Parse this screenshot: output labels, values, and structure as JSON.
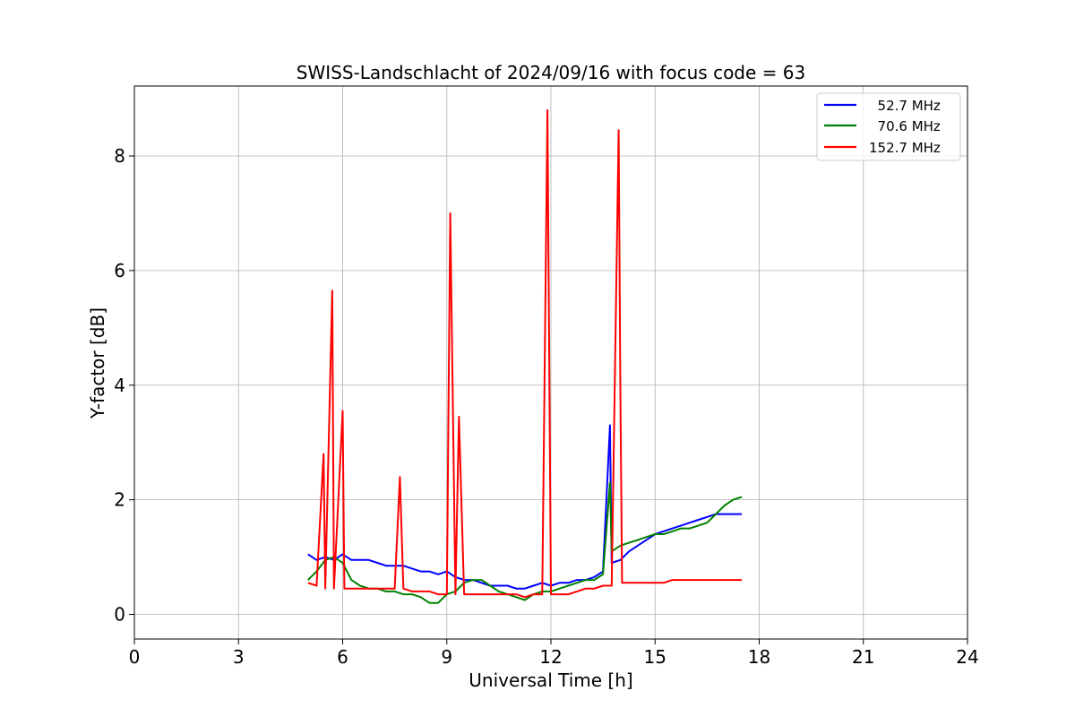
{
  "chart_data": {
    "type": "line",
    "title": "SWISS-Landschlacht of 2024/09/16 with focus code = 63",
    "xlabel": "Universal Time [h]",
    "ylabel": "Y-factor [dB]",
    "xlim": [
      0,
      24
    ],
    "ylim": [
      -0.43,
      9.22
    ],
    "xticks": [
      0,
      3,
      6,
      9,
      12,
      15,
      18,
      21,
      24
    ],
    "yticks": [
      0,
      2,
      4,
      6,
      8
    ],
    "grid": true,
    "legend_position": "top-right",
    "series": [
      {
        "name": "  52.7 MHz",
        "color": "#0000ff",
        "x": [
          5.0,
          5.25,
          5.5,
          5.75,
          6.0,
          6.25,
          6.5,
          6.75,
          7.0,
          7.25,
          7.5,
          7.75,
          8.0,
          8.25,
          8.5,
          8.75,
          9.0,
          9.25,
          9.5,
          9.75,
          10.0,
          10.25,
          10.5,
          10.75,
          11.0,
          11.25,
          11.5,
          11.75,
          12.0,
          12.25,
          12.5,
          12.75,
          13.0,
          13.25,
          13.5,
          13.7,
          13.75,
          14.0,
          14.25,
          14.5,
          14.75,
          15.0,
          15.25,
          15.5,
          15.75,
          16.0,
          16.25,
          16.5,
          16.75,
          17.0,
          17.25,
          17.5
        ],
        "y": [
          1.05,
          0.95,
          1.0,
          0.95,
          1.05,
          0.95,
          0.95,
          0.95,
          0.9,
          0.85,
          0.85,
          0.85,
          0.8,
          0.75,
          0.75,
          0.7,
          0.75,
          0.65,
          0.6,
          0.6,
          0.55,
          0.5,
          0.5,
          0.5,
          0.45,
          0.45,
          0.5,
          0.55,
          0.5,
          0.55,
          0.55,
          0.6,
          0.6,
          0.65,
          0.75,
          3.3,
          0.9,
          0.95,
          1.1,
          1.2,
          1.3,
          1.4,
          1.45,
          1.5,
          1.55,
          1.6,
          1.65,
          1.7,
          1.75,
          1.75,
          1.75,
          1.75
        ]
      },
      {
        "name": "  70.6 MHz",
        "color": "#008000",
        "x": [
          5.0,
          5.25,
          5.5,
          5.75,
          6.0,
          6.25,
          6.5,
          6.75,
          7.0,
          7.25,
          7.5,
          7.75,
          8.0,
          8.25,
          8.5,
          8.75,
          9.0,
          9.25,
          9.5,
          9.75,
          10.0,
          10.25,
          10.5,
          10.75,
          11.0,
          11.25,
          11.5,
          11.75,
          12.0,
          12.25,
          12.5,
          12.75,
          13.0,
          13.25,
          13.5,
          13.7,
          13.75,
          14.0,
          14.25,
          14.5,
          14.75,
          15.0,
          15.25,
          15.5,
          15.75,
          16.0,
          16.25,
          16.5,
          16.75,
          17.0,
          17.25,
          17.5
        ],
        "y": [
          0.6,
          0.75,
          0.95,
          1.0,
          0.9,
          0.6,
          0.5,
          0.45,
          0.45,
          0.4,
          0.4,
          0.35,
          0.35,
          0.3,
          0.2,
          0.2,
          0.35,
          0.4,
          0.55,
          0.6,
          0.6,
          0.5,
          0.4,
          0.35,
          0.3,
          0.25,
          0.35,
          0.4,
          0.4,
          0.45,
          0.5,
          0.55,
          0.6,
          0.6,
          0.7,
          2.3,
          1.1,
          1.2,
          1.25,
          1.3,
          1.35,
          1.4,
          1.4,
          1.45,
          1.5,
          1.5,
          1.55,
          1.6,
          1.75,
          1.9,
          2.0,
          2.05
        ]
      },
      {
        "name": "152.7 MHz",
        "color": "#ff0000",
        "x": [
          5.0,
          5.25,
          5.45,
          5.5,
          5.7,
          5.75,
          6.0,
          6.05,
          6.25,
          6.5,
          6.75,
          7.0,
          7.25,
          7.5,
          7.65,
          7.75,
          8.0,
          8.25,
          8.5,
          8.75,
          9.0,
          9.1,
          9.25,
          9.35,
          9.5,
          9.75,
          10.0,
          10.25,
          10.5,
          10.75,
          11.0,
          11.25,
          11.5,
          11.75,
          11.9,
          12.0,
          12.25,
          12.5,
          12.75,
          13.0,
          13.25,
          13.5,
          13.75,
          13.95,
          14.0,
          14.05,
          14.25,
          14.5,
          14.75,
          15.0,
          15.25,
          15.5,
          15.75,
          16.0,
          16.25,
          16.5,
          16.75,
          17.0,
          17.25,
          17.5
        ],
        "y": [
          0.55,
          0.5,
          2.8,
          0.45,
          5.65,
          0.45,
          3.55,
          0.45,
          0.45,
          0.45,
          0.45,
          0.45,
          0.45,
          0.45,
          2.4,
          0.45,
          0.4,
          0.4,
          0.4,
          0.35,
          0.35,
          7.0,
          0.35,
          3.45,
          0.35,
          0.35,
          0.35,
          0.35,
          0.35,
          0.35,
          0.35,
          0.3,
          0.35,
          0.35,
          8.8,
          0.35,
          0.35,
          0.35,
          0.4,
          0.45,
          0.45,
          0.5,
          0.5,
          8.45,
          3.9,
          0.55,
          0.55,
          0.55,
          0.55,
          0.55,
          0.55,
          0.6,
          0.6,
          0.6,
          0.6,
          0.6,
          0.6,
          0.6,
          0.6,
          0.6
        ]
      }
    ]
  }
}
